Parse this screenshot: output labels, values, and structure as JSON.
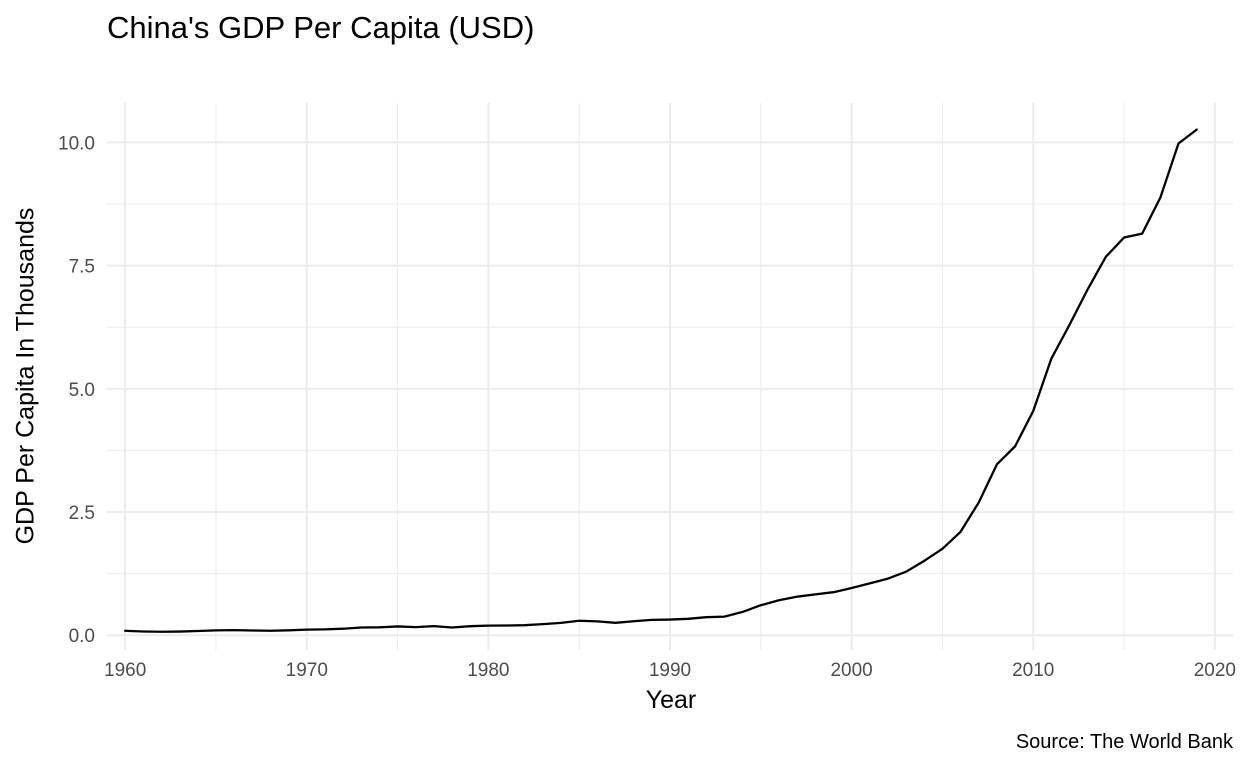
{
  "chart_data": {
    "type": "line",
    "title": "China's GDP Per Capita (USD)",
    "xlabel": "Year",
    "ylabel": "GDP Per Capita In Thousands",
    "caption": "Source: The World Bank",
    "xlim": [
      1959,
      2021
    ],
    "ylim": [
      -0.3,
      10.8
    ],
    "x_ticks": [
      1960,
      1970,
      1980,
      1990,
      2000,
      2010,
      2020
    ],
    "x_tick_labels": [
      "1960",
      "1970",
      "1980",
      "1990",
      "2000",
      "2010",
      "2020"
    ],
    "y_ticks": [
      0,
      2.5,
      5,
      7.5,
      10
    ],
    "y_tick_labels": [
      "0.0",
      "2.5",
      "5.0",
      "7.5",
      "10.0"
    ],
    "grid": true,
    "legend": "none",
    "line_color": "#000000",
    "grid_color": "#ebebeb",
    "series": [
      {
        "x": [
          1960,
          1961,
          1962,
          1963,
          1964,
          1965,
          1966,
          1967,
          1968,
          1969,
          1970,
          1971,
          1972,
          1973,
          1974,
          1975,
          1976,
          1977,
          1978,
          1979,
          1980,
          1981,
          1982,
          1983,
          1984,
          1985,
          1986,
          1987,
          1988,
          1989,
          1990,
          1991,
          1992,
          1993,
          1994,
          1995,
          1996,
          1997,
          1998,
          1999,
          2000,
          2001,
          2002,
          2003,
          2004,
          2005,
          2006,
          2007,
          2008,
          2009,
          2010,
          2011,
          2012,
          2013,
          2014,
          2015,
          2016,
          2017,
          2018,
          2019
        ],
        "values": [
          0.09,
          0.076,
          0.07,
          0.074,
          0.085,
          0.098,
          0.104,
          0.096,
          0.091,
          0.1,
          0.113,
          0.119,
          0.132,
          0.157,
          0.16,
          0.178,
          0.165,
          0.185,
          0.156,
          0.183,
          0.195,
          0.197,
          0.203,
          0.225,
          0.25,
          0.294,
          0.281,
          0.252,
          0.284,
          0.311,
          0.318,
          0.333,
          0.366,
          0.377,
          0.473,
          0.609,
          0.709,
          0.782,
          0.829,
          0.873,
          0.959,
          1.053,
          1.149,
          1.289,
          1.509,
          1.753,
          2.099,
          2.694,
          3.468,
          3.832,
          4.55,
          5.614,
          6.3,
          7.02,
          7.68,
          8.07,
          8.15,
          8.88,
          9.98,
          10.26
        ]
      }
    ]
  }
}
